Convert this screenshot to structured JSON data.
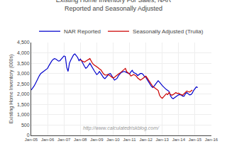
{
  "chart_data": {
    "type": "line",
    "title": "Existing Home Inventory For Sales, NAR Reported and Seasonally Adjusted",
    "y_label": "Existing Home Inventory (000s)",
    "annotation": "http://www.calculatedriskblog.com/",
    "xlim": [
      0,
      132
    ],
    "xticks": [
      {
        "value": 0,
        "label": "Jan-05"
      },
      {
        "value": 12,
        "label": "Jan-06"
      },
      {
        "value": 24,
        "label": "Jan-07"
      },
      {
        "value": 36,
        "label": "Jan-08"
      },
      {
        "value": 48,
        "label": "Jan-09"
      },
      {
        "value": 60,
        "label": "Jan-10"
      },
      {
        "value": 72,
        "label": "Jan-11"
      },
      {
        "value": 84,
        "label": "Jan-12"
      },
      {
        "value": 96,
        "label": "Jan-13"
      },
      {
        "value": 108,
        "label": "Jan-14"
      },
      {
        "value": 120,
        "label": "Jan-15"
      },
      {
        "value": 132,
        "label": "Jan-16"
      }
    ],
    "ylim": [
      0,
      4500
    ],
    "yticks": [
      0,
      500,
      {
        "value": 1000,
        "label": "1,000"
      },
      {
        "value": 1500,
        "label": "1,500"
      },
      {
        "value": 2000,
        "label": "2,000"
      },
      {
        "value": 2500,
        "label": "2,500"
      },
      {
        "value": 3000,
        "label": "3,000"
      },
      {
        "value": 3500,
        "label": "3,500"
      },
      {
        "value": 4000,
        "label": "4,000"
      },
      {
        "value": 4500,
        "label": "4,500"
      }
    ],
    "grid": true,
    "legend": "top",
    "series": [
      {
        "name": "NAR Reported",
        "color": "#0000cc",
        "x": [
          0,
          1,
          2,
          3,
          4,
          5,
          6,
          7,
          8,
          9,
          10,
          11,
          12,
          13,
          14,
          15,
          16,
          17,
          18,
          19,
          20,
          21,
          22,
          23,
          24,
          25,
          26,
          27,
          28,
          29,
          30,
          31,
          32,
          33,
          34,
          35,
          36,
          37,
          38,
          39,
          40,
          41,
          42,
          43,
          44,
          45,
          46,
          47,
          48,
          49,
          50,
          51,
          52,
          53,
          54,
          55,
          56,
          57,
          58,
          59,
          60,
          61,
          62,
          63,
          64,
          65,
          66,
          67,
          68,
          69,
          70,
          71,
          72,
          73,
          74,
          75,
          76,
          77,
          78,
          79,
          80,
          81,
          82,
          83,
          84,
          85,
          86,
          87,
          88,
          89,
          90,
          91,
          92,
          93,
          94,
          95,
          96,
          97,
          98,
          99,
          100,
          101,
          102,
          103,
          104,
          105,
          106,
          107,
          108,
          109,
          110,
          111,
          112,
          113,
          114,
          115,
          116,
          117,
          118,
          119,
          120,
          121,
          122
        ],
        "values": [
          2200,
          2280,
          2380,
          2500,
          2650,
          2780,
          2900,
          3000,
          3050,
          3100,
          3150,
          3200,
          3250,
          3380,
          3500,
          3600,
          3680,
          3720,
          3700,
          3650,
          3600,
          3620,
          3700,
          3780,
          3850,
          3820,
          3300,
          3100,
          3500,
          3650,
          3800,
          3900,
          3950,
          3850,
          3780,
          3620,
          3700,
          3600,
          3450,
          3350,
          3250,
          3300,
          3400,
          3500,
          3380,
          3250,
          3150,
          3050,
          2950,
          3000,
          3100,
          3000,
          2880,
          2800,
          2750,
          2820,
          2900,
          2980,
          3000,
          2900,
          2780,
          2680,
          2720,
          2780,
          2900,
          2980,
          3050,
          3080,
          3100,
          3080,
          3050,
          3020,
          2980,
          3080,
          3150,
          3050,
          3020,
          2980,
          2900,
          2950,
          3000,
          3000,
          2950,
          2850,
          2820,
          2700,
          2580,
          2480,
          2380,
          2320,
          2380,
          2480,
          2580,
          2650,
          2580,
          2480,
          2420,
          2350,
          2280,
          2220,
          2180,
          2130,
          1920,
          1820,
          1780,
          1820,
          1870,
          1920,
          1970,
          1980,
          1950,
          1900,
          1900,
          2020,
          2080,
          2000,
          1960,
          1980,
          2050,
          2180,
          2280,
          2350,
          2320
        ]
      },
      {
        "name": "Seasonally Adjusted (Trulia)",
        "color": "#cc0000",
        "x": [
          36,
          37,
          38,
          39,
          40,
          41,
          42,
          43,
          44,
          45,
          46,
          47,
          48,
          49,
          50,
          51,
          52,
          53,
          54,
          55,
          56,
          57,
          58,
          59,
          60,
          61,
          62,
          63,
          64,
          65,
          66,
          67,
          68,
          69,
          70,
          71,
          72,
          73,
          74,
          75,
          76,
          77,
          78,
          79,
          80,
          81,
          82,
          83,
          84,
          85,
          86,
          87,
          88,
          89,
          90,
          91,
          92,
          93,
          94,
          95,
          96,
          97,
          98,
          99,
          100,
          101,
          102,
          103,
          104,
          105,
          106,
          107,
          108,
          109,
          110,
          111,
          112,
          113,
          114,
          115,
          116,
          117,
          118
        ],
        "values": [
          3650,
          3620,
          3580,
          3550,
          3600,
          3650,
          3700,
          3720,
          3600,
          3480,
          3420,
          3380,
          3320,
          3280,
          3220,
          3180,
          3080,
          2980,
          2930,
          2920,
          2950,
          2930,
          2880,
          2830,
          2780,
          2820,
          2880,
          2930,
          2980,
          3020,
          3080,
          3150,
          3200,
          3250,
          3080,
          3020,
          2980,
          2880,
          2920,
          2950,
          2920,
          2870,
          2780,
          2720,
          2680,
          2720,
          2780,
          2820,
          2870,
          2780,
          2680,
          2580,
          2480,
          2380,
          2330,
          2280,
          2230,
          2180,
          1950,
          1850,
          1800,
          1880,
          1980,
          2020,
          1980,
          2080,
          1980,
          1950,
          1980,
          2020,
          2080,
          2030,
          2050,
          2000,
          1970,
          1950,
          2020,
          2100,
          2150,
          2120,
          2100,
          2150,
          2200
        ]
      }
    ]
  }
}
